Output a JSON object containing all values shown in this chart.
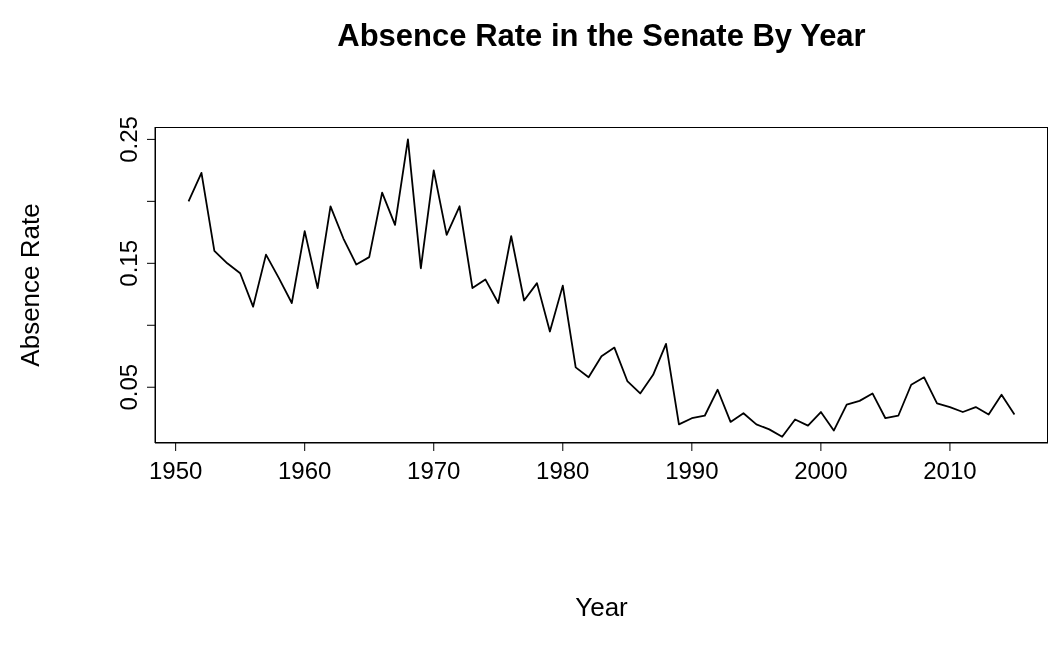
{
  "chart_data": {
    "type": "line",
    "title": "Absence Rate in the Senate By Year",
    "xlabel": "Year",
    "ylabel": "Absence Rate",
    "x": [
      1951,
      1952,
      1953,
      1954,
      1955,
      1956,
      1957,
      1958,
      1959,
      1960,
      1961,
      1962,
      1963,
      1964,
      1965,
      1966,
      1967,
      1968,
      1969,
      1970,
      1971,
      1972,
      1973,
      1974,
      1975,
      1976,
      1977,
      1978,
      1979,
      1980,
      1981,
      1982,
      1983,
      1984,
      1985,
      1986,
      1987,
      1988,
      1989,
      1990,
      1991,
      1992,
      1993,
      1994,
      1995,
      1996,
      1997,
      1998,
      1999,
      2000,
      2001,
      2002,
      2003,
      2004,
      2005,
      2006,
      2007,
      2008,
      2009,
      2010,
      2011,
      2012,
      2013,
      2014,
      2015
    ],
    "series": [
      {
        "color": "#000000",
        "values": [
          0.2,
          0.223,
          0.16,
          0.15,
          0.142,
          0.115,
          0.157,
          0.138,
          0.118,
          0.176,
          0.13,
          0.196,
          0.17,
          0.149,
          0.155,
          0.207,
          0.181,
          0.25,
          0.146,
          0.225,
          0.173,
          0.196,
          0.13,
          0.137,
          0.118,
          0.172,
          0.12,
          0.134,
          0.095,
          0.132,
          0.066,
          0.058,
          0.075,
          0.082,
          0.055,
          0.045,
          0.06,
          0.085,
          0.02,
          0.025,
          0.027,
          0.048,
          0.022,
          0.029,
          0.02,
          0.016,
          0.01,
          0.024,
          0.019,
          0.03,
          0.015,
          0.036,
          0.039,
          0.045,
          0.025,
          0.027,
          0.052,
          0.058,
          0.037,
          0.034,
          0.03,
          0.034,
          0.028,
          0.044,
          0.028
        ]
      }
    ],
    "xlim": [
      1948.4,
      2017.6
    ],
    "xticks": [
      1950,
      1960,
      1970,
      1980,
      1990,
      2000,
      2010
    ],
    "ylim": [
      0.005,
      0.26
    ],
    "yticks": [
      0.05,
      {
        "value": 0.1,
        "label": null
      },
      0.15,
      {
        "value": 0.2,
        "label": null
      },
      0.25
    ],
    "grid": false,
    "legend": false,
    "marker": "none",
    "line_style": "solid"
  }
}
